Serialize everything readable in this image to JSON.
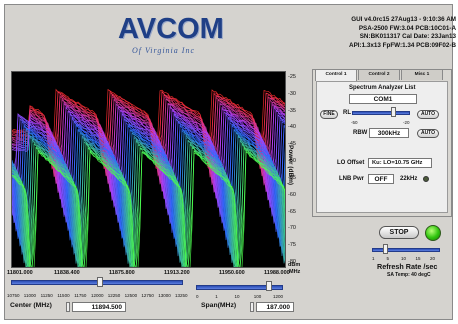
{
  "logo": {
    "main": "AVCOM",
    "sub": "Of Virginia Inc"
  },
  "info_lines": [
    "GUI v4.0rc15  27Aug13 - 9:10:36 AM",
    "PSA-2500 FW:3.04 PCB:10C01-A",
    "SN:BK011317  Cal Date: 23Jan13",
    "API:1.3x13 FpFW:1.34 PCB:09F02-B"
  ],
  "plot": {
    "y_ticks": [
      "-25",
      "-30",
      "-35",
      "-40",
      "-45",
      "-50",
      "-55",
      "-60",
      "-65",
      "-70",
      "-75",
      "-80"
    ],
    "y_label": "Power (dBm)",
    "y_unit_top": "dBm",
    "y_unit_bottom": "MHz",
    "x_ticks": [
      "11801.000",
      "11838.400",
      "11875.800",
      "11913.200",
      "11950.600",
      "11988.000"
    ],
    "colors": {
      "far": "#ff2d2d",
      "mid": "#b040ff",
      "near": "#2a6bff",
      "front": "#4dff4d"
    }
  },
  "center": {
    "scale_labels": [
      "10750",
      "11000",
      "11250",
      "11500",
      "11750",
      "12000",
      "12250",
      "12500",
      "12750",
      "13000",
      "13250"
    ],
    "caption": "Center (MHz)",
    "value": "11894.500",
    "position": 0.52
  },
  "span": {
    "scale_labels": [
      "0",
      "1",
      "10",
      "100",
      "1200"
    ],
    "caption": "Span(MHz)",
    "value": "187.000",
    "position": 0.86
  },
  "panel": {
    "tabs": [
      "Control 1",
      "Control 2",
      "Misc 1"
    ],
    "title": "Spectrum Analyzer List",
    "device_value": "COM1",
    "fine_label": "FINE",
    "rl_label": "RL",
    "rl_min": "-50",
    "rl_max": "-20",
    "rl_position": 0.75,
    "auto_label": "AUTO",
    "rbw_label": "RBW",
    "rbw_value": "300kHz",
    "rbw_auto_label": "AUTO",
    "lo_offset_label": "LO Offset",
    "lo_offset_value": "Ku: LO=10.75 GHz",
    "lnb_pwr_label": "LNB Pwr",
    "lnb_pwr_value": "OFF",
    "khz_label": "22kHz"
  },
  "controls": {
    "stop_label": "STOP",
    "refresh_scale": [
      "1",
      "5",
      "10",
      "15",
      "20"
    ],
    "refresh_position": 0.18,
    "refresh_caption": "Refresh Rate /sec",
    "temp_label": "SA Temp: 40 degC"
  }
}
